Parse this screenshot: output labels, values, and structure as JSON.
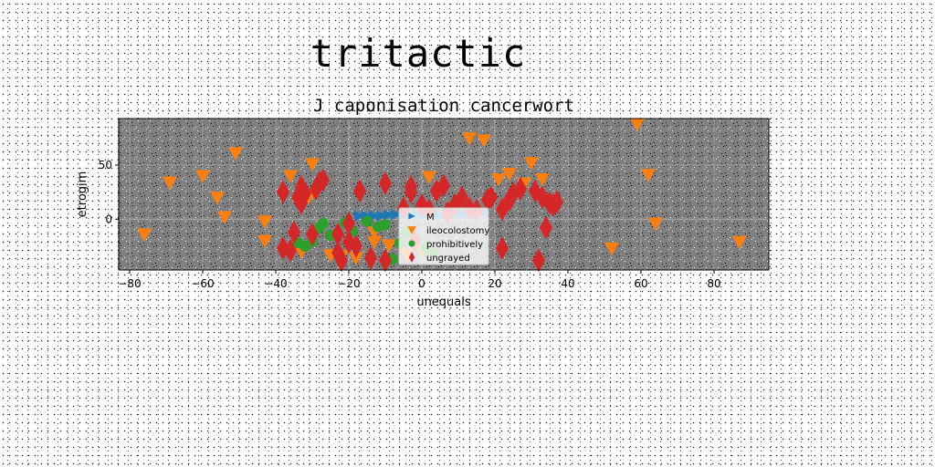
{
  "suptitle": "tritactic",
  "chart_data": {
    "type": "scatter",
    "title": "J caponisation cancerwort",
    "xlabel": "unequals",
    "ylabel": "etrogim",
    "xlim": [
      -83,
      95
    ],
    "ylim": [
      -47,
      93
    ],
    "xticks": [
      -80,
      -60,
      -40,
      -20,
      0,
      20,
      40,
      60,
      80
    ],
    "yticks": [
      0,
      50
    ],
    "grid": true,
    "background": "#808080",
    "legend_position": "center",
    "series": [
      {
        "name": "M",
        "marker": "triangle-right",
        "color": "#1f77b4",
        "points": [
          [
            -17,
            3
          ],
          [
            -15,
            3
          ],
          [
            -13,
            3
          ],
          [
            -11,
            3
          ],
          [
            -9,
            4
          ],
          [
            -7,
            4
          ],
          [
            -5,
            4
          ],
          [
            -3,
            4
          ],
          [
            -1,
            4
          ],
          [
            1,
            4
          ],
          [
            3,
            4
          ],
          [
            5,
            4
          ],
          [
            7,
            5
          ],
          [
            9,
            5
          ],
          [
            11,
            5
          ],
          [
            13,
            5
          ],
          [
            15,
            5
          ],
          [
            17,
            6
          ]
        ]
      },
      {
        "name": "ileocolostomy",
        "marker": "triangle-down",
        "color": "#ff7f0e",
        "points": [
          [
            -76,
            -14
          ],
          [
            -69,
            34
          ],
          [
            -60,
            40
          ],
          [
            -56,
            20
          ],
          [
            -54,
            2
          ],
          [
            -51,
            61
          ],
          [
            -43,
            -2
          ],
          [
            -43,
            -20
          ],
          [
            -36,
            40
          ],
          [
            -30,
            51
          ],
          [
            -31,
            20
          ],
          [
            -33,
            -30
          ],
          [
            -25,
            -33
          ],
          [
            -22,
            -34
          ],
          [
            -18,
            -36
          ],
          [
            -13,
            -21
          ],
          [
            -13,
            -12
          ],
          [
            -9,
            -24
          ],
          [
            -4,
            -33
          ],
          [
            0,
            -29
          ],
          [
            2,
            39
          ],
          [
            13,
            75
          ],
          [
            17,
            73
          ],
          [
            21,
            37
          ],
          [
            24,
            42
          ],
          [
            28,
            33
          ],
          [
            30,
            52
          ],
          [
            33,
            37
          ],
          [
            52,
            -27
          ],
          [
            59,
            88
          ],
          [
            62,
            41
          ],
          [
            64,
            -4
          ],
          [
            87,
            -21
          ]
        ]
      },
      {
        "name": "prohibitively",
        "marker": "circle",
        "color": "#2ca02c",
        "points": [
          [
            -34,
            -22
          ],
          [
            -32,
            -25
          ],
          [
            -30,
            -21
          ],
          [
            -28,
            -8
          ],
          [
            -27,
            -4
          ],
          [
            -25,
            -15
          ],
          [
            -23,
            -13
          ],
          [
            -21,
            -3
          ],
          [
            -19,
            -11
          ],
          [
            -15,
            -2
          ],
          [
            -12,
            -7
          ],
          [
            -10,
            -5
          ],
          [
            -8,
            -37
          ],
          [
            -6,
            -22
          ],
          [
            -4,
            -12
          ],
          [
            1,
            -26
          ],
          [
            3,
            -31
          ]
        ]
      },
      {
        "name": "ungrayed",
        "marker": "thin_diamond",
        "color": "#d62728",
        "points": [
          [
            -38,
            -27
          ],
          [
            -38,
            25
          ],
          [
            -36,
            -29
          ],
          [
            -35,
            -12
          ],
          [
            -34,
            20
          ],
          [
            -33,
            30
          ],
          [
            -33,
            15
          ],
          [
            -32,
            24
          ],
          [
            -30,
            -14
          ],
          [
            -29,
            28
          ],
          [
            -28,
            34
          ],
          [
            -27,
            36
          ],
          [
            -23,
            -14
          ],
          [
            -23,
            -31
          ],
          [
            -22,
            -38
          ],
          [
            -20,
            -21
          ],
          [
            -20,
            -4
          ],
          [
            -18,
            -25
          ],
          [
            -17,
            26
          ],
          [
            -14,
            -36
          ],
          [
            -10,
            33
          ],
          [
            -10,
            -38
          ],
          [
            -5,
            10
          ],
          [
            -3,
            25
          ],
          [
            -3,
            30
          ],
          [
            -2,
            -20
          ],
          [
            0,
            13
          ],
          [
            2,
            8
          ],
          [
            4,
            26
          ],
          [
            6,
            31
          ],
          [
            7,
            6
          ],
          [
            9,
            13
          ],
          [
            11,
            20
          ],
          [
            13,
            10
          ],
          [
            15,
            8
          ],
          [
            18,
            18
          ],
          [
            19,
            20
          ],
          [
            22,
            9
          ],
          [
            22,
            -27
          ],
          [
            24,
            18
          ],
          [
            25,
            24
          ],
          [
            27,
            28
          ],
          [
            31,
            26
          ],
          [
            32,
            -38
          ],
          [
            33,
            20
          ],
          [
            34,
            -8
          ],
          [
            35,
            15
          ],
          [
            36,
            13
          ],
          [
            37,
            16
          ]
        ]
      }
    ]
  }
}
